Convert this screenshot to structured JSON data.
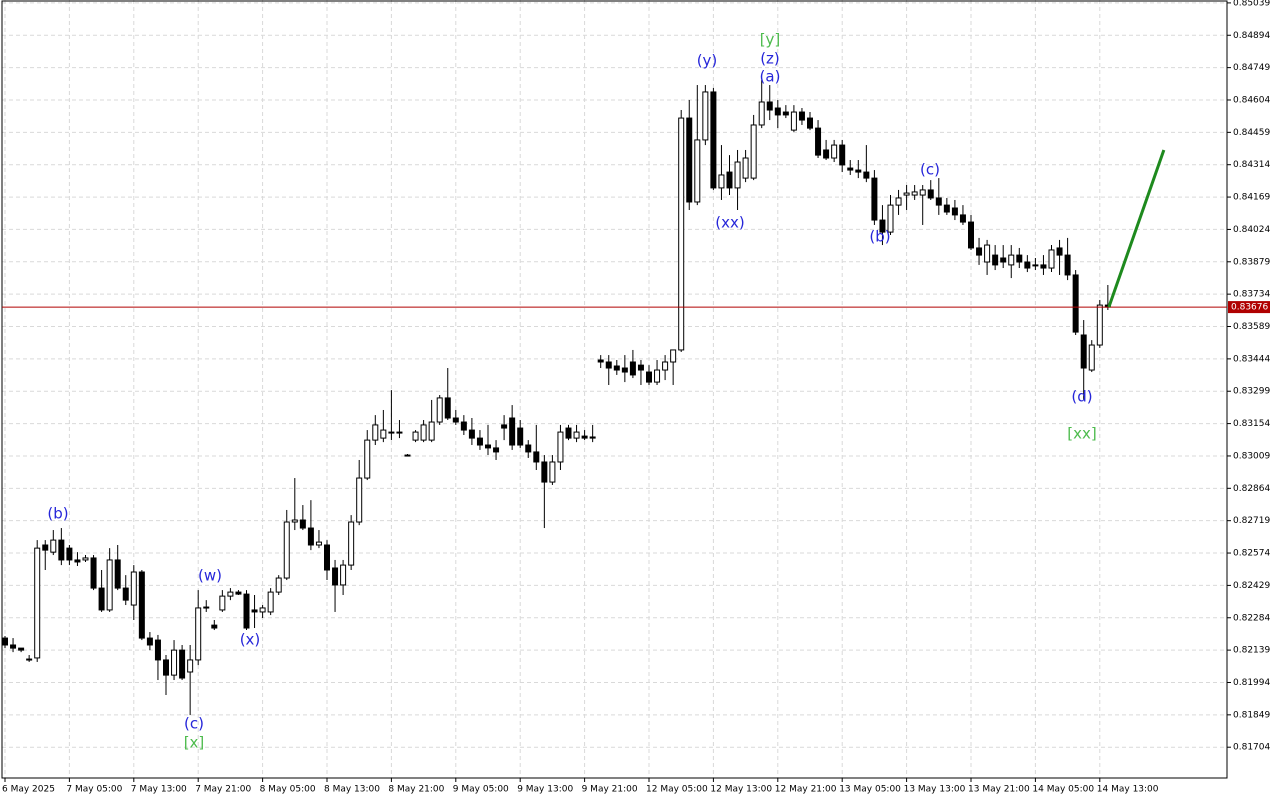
{
  "chart_data": {
    "type": "candlestick",
    "categories": [
      "6 May 2025",
      null,
      null,
      null,
      null,
      null,
      null,
      null,
      "7 May 05:00",
      null,
      null,
      null,
      null,
      null,
      null,
      null,
      "7 May 13:00",
      null,
      null,
      null,
      null,
      null,
      null,
      null,
      "7 May 21:00",
      null,
      null,
      null,
      null,
      null,
      null,
      null,
      "8 May 05:00",
      null,
      null,
      null,
      null,
      null,
      null,
      null,
      "8 May 13:00",
      null,
      null,
      null,
      null,
      null,
      null,
      null,
      "8 May 21:00",
      null,
      null,
      null,
      null,
      null,
      null,
      null,
      "9 May 05:00",
      null,
      null,
      null,
      null,
      null,
      null,
      null,
      "9 May 13:00",
      null,
      null,
      null,
      null,
      null,
      null,
      null,
      "9 May 21:00",
      null,
      null,
      null,
      null,
      null,
      null,
      null,
      "12 May 05:00",
      null,
      null,
      null,
      null,
      null,
      null,
      null,
      "12 May 13:00",
      null,
      null,
      null,
      null,
      null,
      null,
      null,
      "12 May 21:00",
      null,
      null,
      null,
      null,
      null,
      null,
      null,
      "13 May 05:00",
      null,
      null,
      null,
      null,
      null,
      null,
      null,
      "13 May 13:00",
      null,
      null,
      null,
      null,
      null,
      null,
      null,
      "13 May 21:00",
      null,
      null,
      null,
      null,
      null,
      null,
      null,
      "14 May 05:00",
      null,
      null,
      null,
      null,
      null,
      null,
      null,
      "14 May 13:00",
      null
    ],
    "open": [
      0.82193,
      0.82162,
      0.82148,
      0.82095,
      0.82104,
      0.8261,
      0.82578,
      0.82632,
      0.82596,
      0.82543,
      0.82543,
      0.82552,
      0.82417,
      0.82319,
      0.82543,
      0.82417,
      0.82341,
      0.82489,
      0.82193,
      0.82184,
      0.82095,
      0.82027,
      0.82139,
      0.82041,
      0.82095,
      0.82328,
      0.82251,
      0.82319,
      0.82381,
      0.82399,
      0.8239,
      0.82319,
      0.8231,
      0.8231,
      0.82399,
      0.82462,
      0.82713,
      0.82722,
      0.82686,
      0.8261,
      0.8261,
      0.82507,
      0.82431,
      0.8252,
      0.82713,
      0.8291,
      0.8308,
      0.83089,
      0.83116,
      0.83116,
      0.83013,
      0.8308,
      0.8308,
      0.8308,
      0.83161,
      0.83269,
      0.83179,
      0.83161,
      0.83125,
      0.83089,
      0.83058,
      0.83045,
      0.83148,
      0.83179,
      0.83134,
      0.83058,
      0.83027,
      0.82982,
      0.82892,
      0.82982,
      0.83134,
      0.83089,
      0.83098,
      0.83094,
      0.83439,
      0.8343,
      0.83412,
      0.83403,
      0.8343,
      0.83416,
      0.83385,
      0.8334,
      0.83394,
      0.8343,
      0.83484,
      0.84523,
      0.84147,
      0.84425,
      0.8464,
      0.8421,
      0.84281,
      0.8421,
      0.84254,
      0.84254,
      0.84492,
      0.84595,
      0.84568,
      0.8455,
      0.84469,
      0.8455,
      0.84523,
      0.84478,
      0.8438,
      0.84344,
      0.84402,
      0.84299,
      0.8429,
      0.84281,
      0.84254,
      0.84066,
      0.84012,
      0.84133,
      0.84178,
      0.84178,
      0.84178,
      0.84201,
      0.84165,
      0.84133,
      0.8412,
      0.84089,
      0.84057,
      0.83941,
      0.83878,
      0.83909,
      0.83896,
      0.83865,
      0.83909,
      0.83878,
      0.83865,
      0.83865,
      0.83851,
      0.83941,
      0.83909,
      0.8382,
      0.83551,
      0.83394,
      0.83506,
      0.83685
    ],
    "high": [
      0.82202,
      0.82193,
      0.82148,
      0.82117,
      0.82632,
      0.82632,
      0.82677,
      0.82686,
      0.8261,
      0.82578,
      0.82565,
      0.82565,
      0.82498,
      0.82596,
      0.8261,
      0.82475,
      0.8252,
      0.82498,
      0.8222,
      0.82207,
      0.82117,
      0.82184,
      0.82162,
      0.82162,
      0.82408,
      0.82363,
      0.82274,
      0.82408,
      0.82417,
      0.82408,
      0.82408,
      0.82386,
      0.82341,
      0.82417,
      0.82475,
      0.82767,
      0.8291,
      0.82789,
      0.82811,
      0.82677,
      0.82632,
      0.82543,
      0.82543,
      0.82744,
      0.82991,
      0.83125,
      0.83192,
      0.83215,
      0.83304,
      0.8317,
      0.83018,
      0.83125,
      0.8317,
      0.8326,
      0.83282,
      0.83403,
      0.83215,
      0.83192,
      0.83179,
      0.83125,
      0.83148,
      0.8308,
      0.83192,
      0.83237,
      0.8317,
      0.8308,
      0.83148,
      0.83013,
      0.83013,
      0.83148,
      0.83148,
      0.83148,
      0.83125,
      0.83148,
      0.83461,
      0.83461,
      0.83439,
      0.83461,
      0.83484,
      0.83439,
      0.83416,
      0.83439,
      0.83461,
      0.83484,
      0.84559,
      0.84604,
      0.84671,
      0.84671,
      0.84658,
      0.84402,
      0.84357,
      0.8438,
      0.8438,
      0.84537,
      0.84694,
      0.84671,
      0.84604,
      0.84581,
      0.84581,
      0.84568,
      0.8455,
      0.84514,
      0.84425,
      0.84425,
      0.84425,
      0.84335,
      0.84335,
      0.84402,
      0.8429,
      0.84133,
      0.84178,
      0.84201,
      0.84223,
      0.84223,
      0.84223,
      0.84245,
      0.84254,
      0.84165,
      0.84156,
      0.84133,
      0.84089,
      0.83986,
      0.83977,
      0.83954,
      0.83954,
      0.83954,
      0.83941,
      0.83909,
      0.83896,
      0.83909,
      0.83954,
      0.83977,
      0.83986,
      0.83842,
      0.83618,
      0.83528,
      0.83708,
      0.83775
    ],
    "low": [
      0.82148,
      0.8213,
      0.8213,
      0.82086,
      0.82086,
      0.82498,
      0.82565,
      0.8252,
      0.8252,
      0.82516,
      0.82534,
      0.82408,
      0.8231,
      0.8231,
      0.82408,
      0.82341,
      0.82274,
      0.82184,
      0.82139,
      0.82005,
      0.81938,
      0.82005,
      0.82005,
      0.81848,
      0.82072,
      0.8231,
      0.82229,
      0.8231,
      0.82363,
      0.82386,
      0.82229,
      0.82238,
      0.82283,
      0.82296,
      0.82386,
      0.82453,
      0.82677,
      0.82677,
      0.82587,
      0.82596,
      0.82453,
      0.8231,
      0.82386,
      0.82498,
      0.82699,
      0.82901,
      0.83058,
      0.83071,
      0.8308,
      0.83089,
      0.83009,
      0.83071,
      0.83071,
      0.83071,
      0.83148,
      0.8317,
      0.83148,
      0.83103,
      0.83058,
      0.83036,
      0.83013,
      0.82991,
      0.8308,
      0.83036,
      0.83045,
      0.83,
      0.82946,
      0.82686,
      0.82879,
      0.82946,
      0.8308,
      0.83071,
      0.8308,
      0.83071,
      0.83403,
      0.83327,
      0.83372,
      0.8334,
      0.83358,
      0.83327,
      0.83327,
      0.83327,
      0.83349,
      0.83327,
      0.83475,
      0.84111,
      0.84133,
      0.84402,
      0.84201,
      0.84156,
      0.84178,
      0.84111,
      0.84236,
      0.84245,
      0.84478,
      0.84514,
      0.84478,
      0.84523,
      0.84461,
      0.84492,
      0.84469,
      0.84344,
      0.84335,
      0.84326,
      0.84281,
      0.84268,
      0.84254,
      0.84236,
      0.84044,
      0.83954,
      0.83999,
      0.84089,
      0.84111,
      0.84156,
      0.84044,
      0.84156,
      0.84089,
      0.84089,
      0.84066,
      0.84044,
      0.83932,
      0.83865,
      0.8382,
      0.83842,
      0.83851,
      0.83806,
      0.83851,
      0.83833,
      0.83842,
      0.8382,
      0.83833,
      0.8382,
      0.83797,
      0.83551,
      0.8326,
      0.83385,
      0.83493,
      0.83663
    ],
    "close": [
      0.82162,
      0.82148,
      0.82139,
      0.82099,
      0.82596,
      0.82587,
      0.82632,
      0.82543,
      0.82543,
      0.82534,
      0.82552,
      0.82417,
      0.82319,
      0.82543,
      0.82417,
      0.82363,
      0.82489,
      0.82193,
      0.82162,
      0.82095,
      0.82027,
      0.82139,
      0.82014,
      0.82095,
      0.82328,
      0.82332,
      0.82238,
      0.82381,
      0.82399,
      0.8239,
      0.82238,
      0.8231,
      0.82328,
      0.82399,
      0.82462,
      0.82713,
      0.82722,
      0.82686,
      0.8261,
      0.82623,
      0.82498,
      0.82431,
      0.8252,
      0.82713,
      0.8291,
      0.8308,
      0.83148,
      0.83125,
      0.83116,
      0.83112,
      0.83013,
      0.83116,
      0.83148,
      0.83161,
      0.83269,
      0.83179,
      0.83161,
      0.83125,
      0.83089,
      0.83058,
      0.83045,
      0.83027,
      0.83134,
      0.83058,
      0.83058,
      0.83027,
      0.82982,
      0.82892,
      0.82982,
      0.83116,
      0.83089,
      0.83116,
      0.83089,
      0.83089,
      0.8343,
      0.83403,
      0.83394,
      0.83385,
      0.83372,
      0.83394,
      0.8334,
      0.83394,
      0.8343,
      0.83484,
      0.84523,
      0.84147,
      0.84425,
      0.8464,
      0.8421,
      0.84268,
      0.8421,
      0.84326,
      0.84344,
      0.84492,
      0.84595,
      0.84559,
      0.84537,
      0.84537,
      0.8455,
      0.84514,
      0.84478,
      0.84357,
      0.84344,
      0.84402,
      0.84313,
      0.8429,
      0.84281,
      0.84254,
      0.84066,
      0.84012,
      0.84133,
      0.84165,
      0.84187,
      0.84192,
      0.84201,
      0.84165,
      0.84133,
      0.84102,
      0.84089,
      0.84057,
      0.83941,
      0.83909,
      0.83954,
      0.83865,
      0.83878,
      0.83909,
      0.83878,
      0.83851,
      0.83865,
      0.83851,
      0.83932,
      0.83909,
      0.8382,
      0.83564,
      0.83403,
      0.83506,
      0.83685,
      0.83676
    ],
    "up_color": "#ffffff",
    "down_color": "#000000",
    "ylim": [
      0.81566,
      0.85052
    ],
    "yticks": [
      0.85039,
      0.84894,
      0.84749,
      0.84604,
      0.84459,
      0.84314,
      0.84169,
      0.84024,
      0.83879,
      0.83734,
      0.83589,
      0.83444,
      0.83299,
      0.83154,
      0.83009,
      0.82864,
      0.82719,
      0.82574,
      0.82429,
      0.82284,
      0.82139,
      0.81994,
      0.81849,
      0.81704
    ],
    "grid": true,
    "last_price": 0.83676,
    "last_price_color": "#b00000",
    "forecast": {
      "color": "#1e8a1e",
      "values": [
        0.83676,
        0.8438
      ]
    },
    "annotations": [
      {
        "text": "(b)",
        "color": "#2626d9"
      },
      {
        "text": "(w)",
        "color": "#2626d9"
      },
      {
        "text": "(x)",
        "color": "#2626d9"
      },
      {
        "text": "(c)",
        "color": "#2626d9"
      },
      {
        "text": "[x]",
        "color": "#4cbb4c"
      },
      {
        "text": "(y)",
        "color": "#2626d9"
      },
      {
        "text": "[y]",
        "color": "#4cbb4c"
      },
      {
        "text": "(z)",
        "color": "#2626d9"
      },
      {
        "text": "(a)",
        "color": "#2626d9"
      },
      {
        "text": "(xx)",
        "color": "#2626d9"
      },
      {
        "text": "(b)",
        "color": "#2626d9"
      },
      {
        "text": "(c)",
        "color": "#2626d9"
      },
      {
        "text": "(d)",
        "color": "#2626d9"
      },
      {
        "text": "[xx]",
        "color": "#4cbb4c"
      }
    ]
  }
}
